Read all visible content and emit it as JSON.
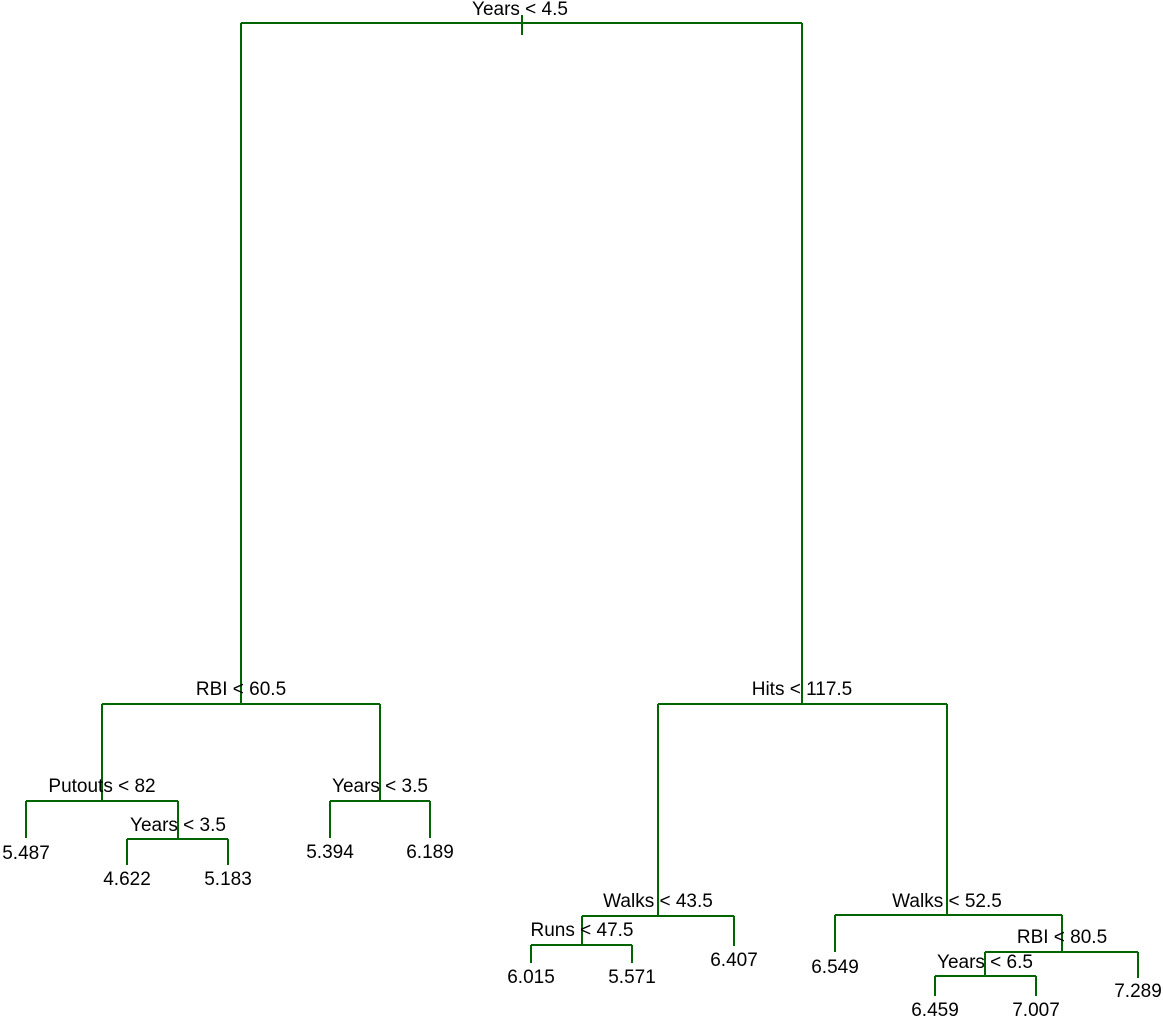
{
  "nodes": [
    {
      "label": "Years < 4.5"
    },
    {
      "label": "RBI < 60.5"
    },
    {
      "label": "Hits < 117.5"
    },
    {
      "label": "Putouts < 82"
    },
    {
      "label": "Years < 3.5"
    },
    {
      "label": "Years < 3.5"
    },
    {
      "label": "Walks < 43.5"
    },
    {
      "label": "Walks < 52.5"
    },
    {
      "label": "Runs < 47.5"
    },
    {
      "label": "RBI < 80.5"
    },
    {
      "label": "Years < 6.5"
    }
  ],
  "leaves": [
    "5.487",
    "4.622",
    "5.183",
    "5.394",
    "6.189",
    "6.015",
    "5.571",
    "6.407",
    "6.549",
    "6.459",
    "7.007",
    "7.289"
  ]
}
